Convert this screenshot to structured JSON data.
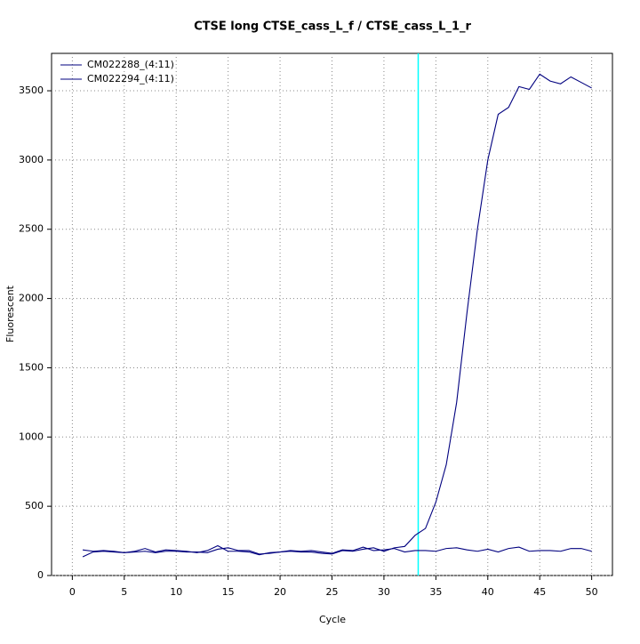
{
  "chart_data": {
    "type": "line",
    "title": "CTSE long CTSE_cass_L_f / CTSE_cass_L_1_r",
    "x_label": "Cycle",
    "y_label": "Fluorescent",
    "x": [
      1,
      2,
      3,
      4,
      5,
      6,
      7,
      8,
      9,
      10,
      11,
      12,
      13,
      14,
      15,
      16,
      17,
      18,
      19,
      20,
      21,
      22,
      23,
      24,
      25,
      26,
      27,
      28,
      29,
      30,
      31,
      32,
      33,
      34,
      35,
      36,
      37,
      38,
      39,
      40,
      41,
      42,
      43,
      44,
      45,
      46,
      47,
      48,
      49,
      50
    ],
    "series": [
      {
        "name": "CM022288_(4:11)",
        "color": "#00007f",
        "values": [
          135,
          170,
          175,
          170,
          165,
          170,
          175,
          165,
          175,
          175,
          170,
          170,
          165,
          190,
          200,
          180,
          180,
          155,
          160,
          170,
          175,
          170,
          170,
          160,
          155,
          180,
          175,
          190,
          200,
          175,
          200,
          210,
          290,
          340,
          530,
          800,
          1250,
          1900,
          2500,
          3000,
          3330,
          3380,
          3530,
          3510,
          3620,
          3570,
          3550,
          3600,
          3560,
          3520
        ]
      },
      {
        "name": "CM022294_(4:11)",
        "color": "#00007f",
        "values": [
          185,
          175,
          180,
          175,
          165,
          175,
          195,
          170,
          185,
          180,
          175,
          165,
          180,
          215,
          175,
          175,
          170,
          150,
          165,
          170,
          180,
          175,
          180,
          170,
          160,
          185,
          180,
          205,
          180,
          185,
          195,
          170,
          180,
          180,
          175,
          195,
          200,
          185,
          175,
          190,
          170,
          195,
          205,
          175,
          180,
          180,
          175,
          195,
          195,
          175
        ]
      }
    ],
    "threshold": {
      "value": 33.3,
      "color": "#00ffff"
    },
    "xlim": [
      -2,
      52
    ],
    "xticks": [
      0,
      5,
      10,
      15,
      20,
      25,
      30,
      35,
      40,
      45,
      50
    ],
    "ylim": [
      0,
      3770
    ],
    "yticks": [
      0,
      500,
      1000,
      1500,
      2000,
      2500,
      3000,
      3500
    ],
    "grid": true,
    "legend": "top-left"
  }
}
